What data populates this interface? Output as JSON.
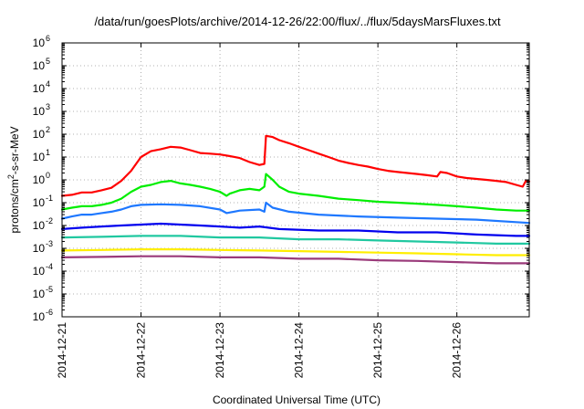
{
  "chart_data": {
    "type": "line",
    "title": "/data/run/goesPlots/archive/2014-12-26/22:00/flux/../flux/5daysMarsFluxes.txt",
    "xlabel": "Coordinated Universal Time (UTC)",
    "ylabel": {
      "base": "protons/cm",
      "sup": "2",
      "rest": "-s-sr-MeV"
    },
    "x_range": [
      "2014-12-21 00:00",
      "2014-12-26 22:00"
    ],
    "x_ticks": [
      "2014-12-21",
      "2014-12-22",
      "2014-12-23",
      "2014-12-24",
      "2014-12-25",
      "2014-12-26"
    ],
    "y_scale": "log",
    "ylim": [
      1e-06,
      1000000.0
    ],
    "y_ticks": [
      {
        "base": "10",
        "exp": "-6"
      },
      {
        "base": "10",
        "exp": "-5"
      },
      {
        "base": "10",
        "exp": "-4"
      },
      {
        "base": "10",
        "exp": "-3"
      },
      {
        "base": "10",
        "exp": "-2"
      },
      {
        "base": "10",
        "exp": "-1"
      },
      {
        "base": "10",
        "exp": "0"
      },
      {
        "base": "10",
        "exp": "1"
      },
      {
        "base": "10",
        "exp": "2"
      },
      {
        "base": "10",
        "exp": "3"
      },
      {
        "base": "10",
        "exp": "4"
      },
      {
        "base": "10",
        "exp": "5"
      },
      {
        "base": "10",
        "exp": "6"
      }
    ],
    "grid": true,
    "series": [
      {
        "color": "#ff0000",
        "points": [
          [
            "2014-12-21 00:00",
            0.2
          ],
          [
            "2014-12-21 03:00",
            0.22
          ],
          [
            "2014-12-21 06:00",
            0.28
          ],
          [
            "2014-12-21 09:00",
            0.28
          ],
          [
            "2014-12-21 12:00",
            0.35
          ],
          [
            "2014-12-21 15:00",
            0.45
          ],
          [
            "2014-12-21 18:00",
            0.9
          ],
          [
            "2014-12-21 21:00",
            2.5
          ],
          [
            "2014-12-22 00:00",
            10
          ],
          [
            "2014-12-22 03:00",
            18
          ],
          [
            "2014-12-22 06:00",
            22
          ],
          [
            "2014-12-22 09:00",
            28
          ],
          [
            "2014-12-22 12:00",
            26
          ],
          [
            "2014-12-22 15:00",
            20
          ],
          [
            "2014-12-22 18:00",
            15
          ],
          [
            "2014-12-22 21:00",
            14
          ],
          [
            "2014-12-23 00:00",
            13
          ],
          [
            "2014-12-23 03:00",
            11
          ],
          [
            "2014-12-23 06:00",
            9
          ],
          [
            "2014-12-23 09:00",
            6
          ],
          [
            "2014-12-23 12:00",
            4.5
          ],
          [
            "2014-12-23 13:30",
            5
          ],
          [
            "2014-12-23 14:00",
            85
          ],
          [
            "2014-12-23 16:00",
            75
          ],
          [
            "2014-12-23 18:00",
            55
          ],
          [
            "2014-12-23 21:00",
            40
          ],
          [
            "2014-12-24 00:00",
            28
          ],
          [
            "2014-12-24 03:00",
            20
          ],
          [
            "2014-12-24 06:00",
            14
          ],
          [
            "2014-12-24 09:00",
            10
          ],
          [
            "2014-12-24 12:00",
            7
          ],
          [
            "2014-12-24 15:00",
            5.5
          ],
          [
            "2014-12-24 18:00",
            4.5
          ],
          [
            "2014-12-24 21:00",
            3.8
          ],
          [
            "2014-12-25 00:00",
            3.0
          ],
          [
            "2014-12-25 03:00",
            2.5
          ],
          [
            "2014-12-25 06:00",
            2.2
          ],
          [
            "2014-12-25 09:00",
            2.0
          ],
          [
            "2014-12-25 12:00",
            1.8
          ],
          [
            "2014-12-25 15:00",
            1.6
          ],
          [
            "2014-12-25 18:00",
            1.4
          ],
          [
            "2014-12-25 19:00",
            2.2
          ],
          [
            "2014-12-25 21:00",
            2.0
          ],
          [
            "2014-12-26 00:00",
            1.4
          ],
          [
            "2014-12-26 03:00",
            1.2
          ],
          [
            "2014-12-26 06:00",
            1.1
          ],
          [
            "2014-12-26 09:00",
            1.0
          ],
          [
            "2014-12-26 12:00",
            0.9
          ],
          [
            "2014-12-26 15:00",
            0.8
          ],
          [
            "2014-12-26 18:00",
            0.6
          ],
          [
            "2014-12-26 20:00",
            0.5
          ],
          [
            "2014-12-26 21:00",
            0.9
          ],
          [
            "2014-12-26 22:00",
            0.85
          ]
        ]
      },
      {
        "color": "#00ee00",
        "points": [
          [
            "2014-12-21 00:00",
            0.05
          ],
          [
            "2014-12-21 03:00",
            0.06
          ],
          [
            "2014-12-21 06:00",
            0.07
          ],
          [
            "2014-12-21 09:00",
            0.07
          ],
          [
            "2014-12-21 12:00",
            0.08
          ],
          [
            "2014-12-21 15:00",
            0.1
          ],
          [
            "2014-12-21 18:00",
            0.15
          ],
          [
            "2014-12-21 21:00",
            0.3
          ],
          [
            "2014-12-22 00:00",
            0.5
          ],
          [
            "2014-12-22 03:00",
            0.6
          ],
          [
            "2014-12-22 06:00",
            0.8
          ],
          [
            "2014-12-22 09:00",
            0.9
          ],
          [
            "2014-12-22 12:00",
            0.7
          ],
          [
            "2014-12-22 15:00",
            0.6
          ],
          [
            "2014-12-22 18:00",
            0.5
          ],
          [
            "2014-12-22 21:00",
            0.4
          ],
          [
            "2014-12-23 00:00",
            0.3
          ],
          [
            "2014-12-23 02:00",
            0.2
          ],
          [
            "2014-12-23 03:00",
            0.25
          ],
          [
            "2014-12-23 06:00",
            0.35
          ],
          [
            "2014-12-23 09:00",
            0.4
          ],
          [
            "2014-12-23 12:00",
            0.35
          ],
          [
            "2014-12-23 13:30",
            0.5
          ],
          [
            "2014-12-23 14:00",
            1.8
          ],
          [
            "2014-12-23 16:00",
            1.0
          ],
          [
            "2014-12-23 18:00",
            0.5
          ],
          [
            "2014-12-23 21:00",
            0.3
          ],
          [
            "2014-12-24 00:00",
            0.25
          ],
          [
            "2014-12-24 06:00",
            0.2
          ],
          [
            "2014-12-24 12:00",
            0.15
          ],
          [
            "2014-12-24 18:00",
            0.13
          ],
          [
            "2014-12-25 00:00",
            0.11
          ],
          [
            "2014-12-25 06:00",
            0.1
          ],
          [
            "2014-12-25 12:00",
            0.09
          ],
          [
            "2014-12-25 18:00",
            0.08
          ],
          [
            "2014-12-26 00:00",
            0.07
          ],
          [
            "2014-12-26 06:00",
            0.06
          ],
          [
            "2014-12-26 12:00",
            0.05
          ],
          [
            "2014-12-26 18:00",
            0.045
          ],
          [
            "2014-12-26 22:00",
            0.045
          ]
        ]
      },
      {
        "color": "#1e78ff",
        "points": [
          [
            "2014-12-21 00:00",
            0.02
          ],
          [
            "2014-12-21 03:00",
            0.025
          ],
          [
            "2014-12-21 06:00",
            0.03
          ],
          [
            "2014-12-21 09:00",
            0.03
          ],
          [
            "2014-12-21 12:00",
            0.035
          ],
          [
            "2014-12-21 15:00",
            0.04
          ],
          [
            "2014-12-21 18:00",
            0.05
          ],
          [
            "2014-12-21 21:00",
            0.07
          ],
          [
            "2014-12-22 00:00",
            0.08
          ],
          [
            "2014-12-22 06:00",
            0.085
          ],
          [
            "2014-12-22 12:00",
            0.08
          ],
          [
            "2014-12-22 18:00",
            0.07
          ],
          [
            "2014-12-23 00:00",
            0.05
          ],
          [
            "2014-12-23 02:00",
            0.035
          ],
          [
            "2014-12-23 06:00",
            0.045
          ],
          [
            "2014-12-23 12:00",
            0.05
          ],
          [
            "2014-12-23 13:30",
            0.04
          ],
          [
            "2014-12-23 14:00",
            0.1
          ],
          [
            "2014-12-23 16:00",
            0.06
          ],
          [
            "2014-12-23 21:00",
            0.04
          ],
          [
            "2014-12-24 06:00",
            0.03
          ],
          [
            "2014-12-24 18:00",
            0.025
          ],
          [
            "2014-12-25 06:00",
            0.022
          ],
          [
            "2014-12-25 18:00",
            0.02
          ],
          [
            "2014-12-26 06:00",
            0.018
          ],
          [
            "2014-12-26 18:00",
            0.014
          ],
          [
            "2014-12-26 22:00",
            0.013
          ]
        ]
      },
      {
        "color": "#0000ee",
        "points": [
          [
            "2014-12-21 00:00",
            0.007
          ],
          [
            "2014-12-21 06:00",
            0.008
          ],
          [
            "2014-12-21 12:00",
            0.009
          ],
          [
            "2014-12-21 18:00",
            0.01
          ],
          [
            "2014-12-22 00:00",
            0.011
          ],
          [
            "2014-12-22 06:00",
            0.012
          ],
          [
            "2014-12-22 12:00",
            0.011
          ],
          [
            "2014-12-22 18:00",
            0.01
          ],
          [
            "2014-12-23 00:00",
            0.009
          ],
          [
            "2014-12-23 06:00",
            0.008
          ],
          [
            "2014-12-23 12:00",
            0.009
          ],
          [
            "2014-12-23 18:00",
            0.007
          ],
          [
            "2014-12-24 06:00",
            0.006
          ],
          [
            "2014-12-24 18:00",
            0.006
          ],
          [
            "2014-12-25 06:00",
            0.005
          ],
          [
            "2014-12-25 18:00",
            0.005
          ],
          [
            "2014-12-26 06:00",
            0.004
          ],
          [
            "2014-12-26 18:00",
            0.0035
          ],
          [
            "2014-12-26 22:00",
            0.0035
          ]
        ]
      },
      {
        "color": "#20c8a0",
        "points": [
          [
            "2014-12-21 00:00",
            0.003
          ],
          [
            "2014-12-21 12:00",
            0.0032
          ],
          [
            "2014-12-22 00:00",
            0.0035
          ],
          [
            "2014-12-22 12:00",
            0.0035
          ],
          [
            "2014-12-23 00:00",
            0.003
          ],
          [
            "2014-12-23 12:00",
            0.003
          ],
          [
            "2014-12-24 00:00",
            0.0025
          ],
          [
            "2014-12-24 12:00",
            0.0025
          ],
          [
            "2014-12-25 00:00",
            0.0022
          ],
          [
            "2014-12-25 12:00",
            0.002
          ],
          [
            "2014-12-26 00:00",
            0.0018
          ],
          [
            "2014-12-26 12:00",
            0.0016
          ],
          [
            "2014-12-26 22:00",
            0.0016
          ]
        ]
      },
      {
        "color": "#ffee00",
        "points": [
          [
            "2014-12-21 00:00",
            0.0008
          ],
          [
            "2014-12-21 12:00",
            0.00085
          ],
          [
            "2014-12-22 00:00",
            0.0009
          ],
          [
            "2014-12-22 12:00",
            0.0009
          ],
          [
            "2014-12-23 00:00",
            0.00085
          ],
          [
            "2014-12-23 12:00",
            0.0008
          ],
          [
            "2014-12-24 00:00",
            0.00075
          ],
          [
            "2014-12-24 12:00",
            0.0007
          ],
          [
            "2014-12-25 00:00",
            0.00065
          ],
          [
            "2014-12-25 12:00",
            0.0006
          ],
          [
            "2014-12-26 00:00",
            0.00055
          ],
          [
            "2014-12-26 12:00",
            0.0005
          ],
          [
            "2014-12-26 22:00",
            0.0005
          ]
        ]
      },
      {
        "color": "#9a3a7a",
        "points": [
          [
            "2014-12-21 00:00",
            0.0004
          ],
          [
            "2014-12-21 12:00",
            0.00042
          ],
          [
            "2014-12-22 00:00",
            0.00045
          ],
          [
            "2014-12-22 12:00",
            0.00045
          ],
          [
            "2014-12-23 00:00",
            0.0004
          ],
          [
            "2014-12-23 12:00",
            0.0004
          ],
          [
            "2014-12-24 00:00",
            0.00035
          ],
          [
            "2014-12-24 12:00",
            0.00035
          ],
          [
            "2014-12-25 00:00",
            0.0003
          ],
          [
            "2014-12-25 12:00",
            0.00028
          ],
          [
            "2014-12-26 00:00",
            0.00025
          ],
          [
            "2014-12-26 12:00",
            0.00022
          ],
          [
            "2014-12-26 22:00",
            0.00022
          ]
        ]
      }
    ]
  }
}
